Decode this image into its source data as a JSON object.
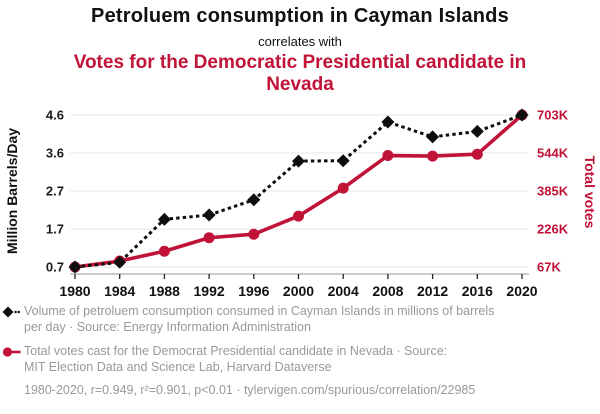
{
  "header": {
    "title": "Petroluem consumption in Cayman Islands",
    "subtitle": "correlates with",
    "correlate_title": "Votes for the Democratic Presidential candidate in Nevada"
  },
  "colors": {
    "series_black": "#0e0e0e",
    "series_red": "#c11338",
    "legend_gray": "#999999",
    "gridline": "#ececec",
    "axis_line": "#aaaaaa",
    "tick_mark": "#222222"
  },
  "chart_data": {
    "type": "line",
    "x": [
      1980,
      1984,
      1988,
      1992,
      1996,
      2000,
      2004,
      2008,
      2012,
      2016,
      2020
    ],
    "x_tick_labels": [
      "1980",
      "1984",
      "1988",
      "1992",
      "1996",
      "2000",
      "2004",
      "2008",
      "2012",
      "2016",
      "2020"
    ],
    "series": [
      {
        "name": "petroleum-consumption-cayman-islands",
        "axis": "left",
        "color": "#0e0e0e",
        "line_style": "dashed",
        "marker": "diamond",
        "values": [
          0.7,
          0.82,
          1.92,
          2.03,
          2.42,
          3.41,
          3.42,
          4.41,
          4.03,
          4.17,
          4.59
        ]
      },
      {
        "name": "democrat-presidential-votes-nevada",
        "axis": "right",
        "color": "#c11338",
        "line_style": "solid",
        "marker": "circle",
        "values": [
          66666,
          91655,
          132738,
          189148,
          203974,
          279978,
          397190,
          533736,
          531373,
          539260,
          703486
        ]
      }
    ],
    "left_axis": {
      "label": "Million Barrels/Day",
      "tick_labels": [
        "4.6",
        "3.6",
        "2.7",
        "1.7",
        "0.7"
      ],
      "min": 0.7,
      "max": 4.59
    },
    "right_axis": {
      "label": "Total votes",
      "tick_labels": [
        "703K",
        "544K",
        "385K",
        "226K",
        "67K"
      ],
      "min": 66666,
      "max": 703486
    },
    "grid": "horizontal",
    "legend_position": "below"
  },
  "legend": {
    "entries": [
      {
        "lines": [
          "Volume of petroluem consumption consumed in Cayman Islands in millions of barrels",
          "per day · Source: Energy Information Administration"
        ]
      },
      {
        "lines": [
          "Total votes cast for the Democrat Presidential candidate in Nevada · Source:",
          "MIT Election Data and Science Lab, Harvard Dataverse"
        ]
      }
    ]
  },
  "footer": {
    "citation": "1980-2020, r=0.949, r²=0.901, p<0.01 · tylervigen.com/spurious/correlation/22985"
  }
}
